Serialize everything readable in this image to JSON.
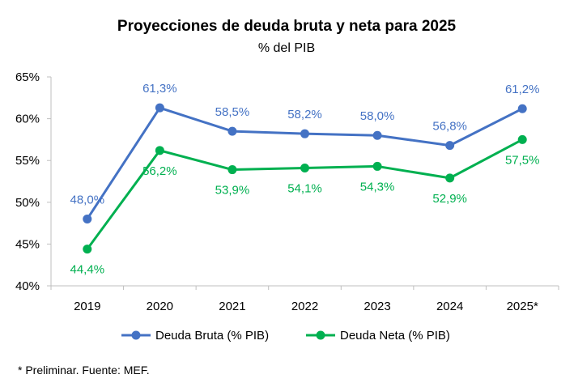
{
  "chart_data": {
    "type": "line",
    "title": "Proyecciones de deuda bruta y neta para 2025",
    "subtitle": "% del PIB",
    "categories": [
      "2019",
      "2020",
      "2021",
      "2022",
      "2023",
      "2024",
      "2025*"
    ],
    "ylim": [
      40,
      65
    ],
    "yticks": [
      40,
      45,
      50,
      55,
      60,
      65
    ],
    "ytick_labels": [
      "40%",
      "45%",
      "50%",
      "55%",
      "60%",
      "65%"
    ],
    "series": [
      {
        "name": "Deuda Bruta (% PIB)",
        "color": "#4472C4",
        "label_position": "above",
        "values": [
          48.0,
          61.3,
          58.5,
          58.2,
          58.0,
          56.8,
          61.2
        ],
        "labels": [
          "48,0%",
          "61,3%",
          "58,5%",
          "58,2%",
          "58,0%",
          "56,8%",
          "61,2%"
        ]
      },
      {
        "name": "Deuda Neta (% PIB)",
        "color": "#00B050",
        "label_position": "below",
        "values": [
          44.4,
          56.2,
          53.9,
          54.1,
          54.3,
          52.9,
          57.5
        ],
        "labels": [
          "44,4%",
          "56,2%",
          "53,9%",
          "54,1%",
          "54,3%",
          "52,9%",
          "57,5%"
        ]
      }
    ],
    "legend": "bottom",
    "grid": false
  },
  "footnote": "* Preliminar. Fuente: MEF."
}
